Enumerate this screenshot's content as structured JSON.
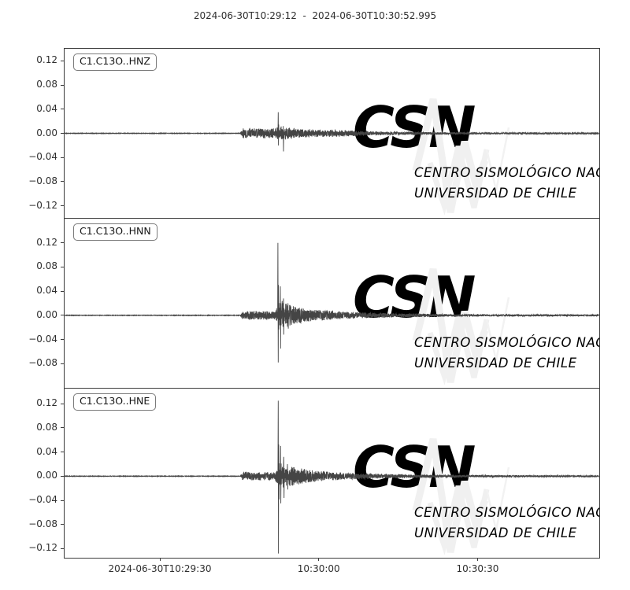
{
  "chart_data": {
    "type": "line",
    "title": "2024-06-30T10:29:12  -  2024-06-30T10:30:52.995",
    "grid": false,
    "trace_color": "#454545",
    "axis_color": "#3c3c3c",
    "x_axis": {
      "start_label": "2024-06-30T10:29:12",
      "end_label": "2024-06-30T10:30:52.995",
      "duration_seconds": 100.995,
      "ticks": [
        {
          "t_seconds": 18,
          "label": "2024-06-30T10:29:30"
        },
        {
          "t_seconds": 48,
          "label": "10:30:00"
        },
        {
          "t_seconds": 78,
          "label": "10:30:30"
        }
      ]
    },
    "series": [
      {
        "id": "C1.C13O..HNZ",
        "ylim": [
          -0.14,
          0.14
        ],
        "yticks": [
          0.12,
          0.08,
          0.04,
          0,
          -0.04,
          -0.08,
          -0.12
        ],
        "p_arrival_seconds": 33.5,
        "peak_time_seconds": 40.4,
        "peak_max": 0.035,
        "peak_min": -0.033,
        "envelope": [
          [
            0,
            0.0004
          ],
          [
            33.2,
            0.0004
          ],
          [
            33.6,
            0.006
          ],
          [
            40,
            0.006
          ],
          [
            40.4,
            0.009
          ],
          [
            42,
            0.007
          ],
          [
            46,
            0.005
          ],
          [
            52,
            0.004
          ],
          [
            58,
            0.0025
          ],
          [
            66,
            0.0018
          ],
          [
            75,
            0.0012
          ],
          [
            101,
            0.0009
          ]
        ],
        "spikes": [
          [
            40.35,
            0.035,
            -0.02
          ],
          [
            41.3,
            0.012,
            -0.03
          ]
        ]
      },
      {
        "id": "C1.C13O..HNN",
        "ylim": [
          -0.12,
          0.16
        ],
        "yticks": [
          0.12,
          0.08,
          0.04,
          0,
          -0.04,
          -0.08
        ],
        "p_arrival_seconds": 33.5,
        "peak_time_seconds": 40.3,
        "peak_max": 0.12,
        "peak_min": -0.08,
        "envelope": [
          [
            0,
            0.0004
          ],
          [
            33.2,
            0.0004
          ],
          [
            33.6,
            0.005
          ],
          [
            39.8,
            0.005
          ],
          [
            40.3,
            0.012
          ],
          [
            41,
            0.018
          ],
          [
            42.5,
            0.013
          ],
          [
            44,
            0.01
          ],
          [
            47,
            0.007
          ],
          [
            51,
            0.005
          ],
          [
            56,
            0.0035
          ],
          [
            62,
            0.0025
          ],
          [
            70,
            0.0018
          ],
          [
            80,
            0.0012
          ],
          [
            101,
            0.001
          ]
        ],
        "spikes": [
          [
            40.3,
            0.12,
            -0.078
          ],
          [
            40.75,
            0.048,
            -0.055
          ],
          [
            41.35,
            0.028,
            -0.032
          ],
          [
            42.2,
            0.02,
            -0.022
          ]
        ]
      },
      {
        "id": "C1.C13O..HNE",
        "ylim": [
          -0.135,
          0.145
        ],
        "yticks": [
          0.12,
          0.08,
          0.04,
          0,
          -0.04,
          -0.08,
          -0.12
        ],
        "p_arrival_seconds": 33.5,
        "peak_time_seconds": 40.35,
        "peak_max": 0.125,
        "peak_min": -0.128,
        "envelope": [
          [
            0,
            0.0004
          ],
          [
            33.2,
            0.0004
          ],
          [
            33.6,
            0.005
          ],
          [
            39.8,
            0.005
          ],
          [
            40.3,
            0.011
          ],
          [
            41,
            0.015
          ],
          [
            42.5,
            0.012
          ],
          [
            45,
            0.009
          ],
          [
            48,
            0.006
          ],
          [
            52,
            0.0045
          ],
          [
            58,
            0.003
          ],
          [
            65,
            0.002
          ],
          [
            75,
            0.0015
          ],
          [
            101,
            0.001
          ]
        ],
        "spikes": [
          [
            40.35,
            0.125,
            -0.128
          ],
          [
            40.8,
            0.05,
            -0.045
          ],
          [
            41.4,
            0.032,
            -0.036
          ],
          [
            42.1,
            0.02,
            -0.022
          ]
        ]
      }
    ],
    "watermark": {
      "logo_text": "CSN",
      "line1": "CENTRO SISMOLÓGICO NACIONAL",
      "line2": "UNIVERSIDAD DE CHILE",
      "color": "#f0f0f0"
    }
  }
}
